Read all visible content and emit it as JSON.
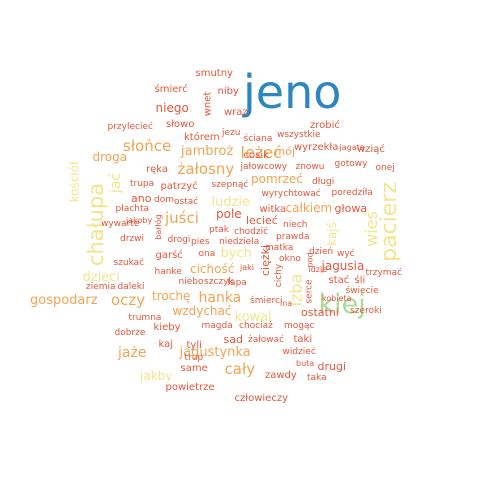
{
  "palette": {
    "blue": "#2e86c1",
    "green": "#a9dc9a",
    "yellow": "#f4e48c",
    "orange": "#f0a552",
    "red": "#e4573c"
  },
  "words": [
    {
      "text": "jeno",
      "color": "blue"
    },
    {
      "text": "kiej",
      "color": "green"
    },
    {
      "text": "pacierz",
      "color": "yellow"
    },
    {
      "text": "chałupa",
      "color": "yellow"
    },
    {
      "text": "leżeć",
      "color": "orange"
    },
    {
      "text": "słońce",
      "color": "orange"
    },
    {
      "text": "żałosny",
      "color": "orange"
    },
    {
      "text": "juści",
      "color": "orange"
    },
    {
      "text": "oczy",
      "color": "orange"
    },
    {
      "text": "hanka",
      "color": "orange"
    },
    {
      "text": "cały",
      "color": "orange"
    },
    {
      "text": "jaże",
      "color": "orange"
    },
    {
      "text": "izba",
      "color": "yellow"
    },
    {
      "text": "wieś",
      "color": "yellow"
    },
    {
      "text": "ludzie",
      "color": "yellow"
    },
    {
      "text": "bych",
      "color": "yellow"
    },
    {
      "text": "dzieci",
      "color": "yellow"
    },
    {
      "text": "kowal",
      "color": "yellow"
    },
    {
      "text": "jakby",
      "color": "yellow"
    },
    {
      "text": "gospodarz",
      "color": "orange"
    },
    {
      "text": "jagustynka",
      "color": "orange"
    },
    {
      "text": "jambroż",
      "color": "orange"
    },
    {
      "text": "cichość",
      "color": "orange"
    },
    {
      "text": "wzdychać",
      "color": "orange"
    },
    {
      "text": "trochę",
      "color": "orange"
    },
    {
      "text": "pomrzeć",
      "color": "orange"
    },
    {
      "text": "całkiem",
      "color": "orange"
    },
    {
      "text": "kajś",
      "color": "yellow"
    },
    {
      "text": "jać",
      "color": "yellow"
    },
    {
      "text": "kościół",
      "color": "yellow"
    },
    {
      "text": "droga",
      "color": "orange"
    },
    {
      "text": "mój",
      "color": "orange"
    },
    {
      "text": "niego",
      "color": "red"
    },
    {
      "text": "smutny",
      "color": "red"
    },
    {
      "text": "niby",
      "color": "red"
    },
    {
      "text": "śmierć",
      "color": "red"
    },
    {
      "text": "wnet",
      "color": "red"
    },
    {
      "text": "wraz",
      "color": "red"
    },
    {
      "text": "przylecieć",
      "color": "red"
    },
    {
      "text": "słowo",
      "color": "red"
    },
    {
      "text": "jezu",
      "color": "red"
    },
    {
      "text": "którem",
      "color": "red"
    },
    {
      "text": "ściana",
      "color": "red"
    },
    {
      "text": "wszystkie",
      "color": "red"
    },
    {
      "text": "zrobić",
      "color": "red"
    },
    {
      "text": "wyrzekła",
      "color": "red"
    },
    {
      "text": "wziąć",
      "color": "red"
    },
    {
      "text": "jagata",
      "color": "red"
    },
    {
      "text": "gotowy",
      "color": "red"
    },
    {
      "text": "onej",
      "color": "red"
    },
    {
      "text": "cosik",
      "color": "red"
    },
    {
      "text": "jałowcowy",
      "color": "red"
    },
    {
      "text": "znowu",
      "color": "red"
    },
    {
      "text": "długi",
      "color": "red"
    },
    {
      "text": "ręka",
      "color": "red"
    },
    {
      "text": "trupa",
      "color": "red"
    },
    {
      "text": "patrzyć",
      "color": "red"
    },
    {
      "text": "szepnąć",
      "color": "red"
    },
    {
      "text": "ano",
      "color": "red"
    },
    {
      "text": "dom",
      "color": "red"
    },
    {
      "text": "ostać",
      "color": "red"
    },
    {
      "text": "wyrychtować",
      "color": "red"
    },
    {
      "text": "poredziła",
      "color": "red"
    },
    {
      "text": "płachta",
      "color": "red"
    },
    {
      "text": "witka",
      "color": "red"
    },
    {
      "text": "głowa",
      "color": "red"
    },
    {
      "text": "pole",
      "color": "red"
    },
    {
      "text": "lecieć",
      "color": "red"
    },
    {
      "text": "niech",
      "color": "red"
    },
    {
      "text": "wywarte",
      "color": "red"
    },
    {
      "text": "jakoby",
      "color": "red"
    },
    {
      "text": "barłóg",
      "color": "red"
    },
    {
      "text": "ptak",
      "color": "red"
    },
    {
      "text": "chodzić",
      "color": "red"
    },
    {
      "text": "prawda",
      "color": "red"
    },
    {
      "text": "drzwi",
      "color": "red"
    },
    {
      "text": "drogi",
      "color": "red"
    },
    {
      "text": "pies",
      "color": "red"
    },
    {
      "text": "niedziela",
      "color": "red"
    },
    {
      "text": "ona",
      "color": "red"
    },
    {
      "text": "matka",
      "color": "red"
    },
    {
      "text": "okno",
      "color": "red"
    },
    {
      "text": "ciężki",
      "color": "red"
    },
    {
      "text": "wyć",
      "color": "red"
    },
    {
      "text": "jagusia",
      "color": "red"
    },
    {
      "text": "garść",
      "color": "red"
    },
    {
      "text": "szukać",
      "color": "red"
    },
    {
      "text": "hanke",
      "color": "red"
    },
    {
      "text": "niebo",
      "color": "red"
    },
    {
      "text": "szczyk",
      "color": "red"
    },
    {
      "text": "łapa",
      "color": "red"
    },
    {
      "text": "jaki",
      "color": "red"
    },
    {
      "text": "trzymać",
      "color": "red"
    },
    {
      "text": "ziemia",
      "color": "red"
    },
    {
      "text": "daleki",
      "color": "red"
    },
    {
      "text": "stać",
      "color": "red"
    },
    {
      "text": "śli",
      "color": "red"
    },
    {
      "text": "świecie",
      "color": "red"
    },
    {
      "text": "kobieta",
      "color": "red"
    },
    {
      "text": "śmierci",
      "color": "red"
    },
    {
      "text": "serce",
      "color": "red"
    },
    {
      "text": "pod",
      "color": "red"
    },
    {
      "text": "ostatni",
      "color": "red"
    },
    {
      "text": "szeroki",
      "color": "red"
    },
    {
      "text": "trumna",
      "color": "red"
    },
    {
      "text": "kieby",
      "color": "red"
    },
    {
      "text": "magda",
      "color": "red"
    },
    {
      "text": "chociaż",
      "color": "red"
    },
    {
      "text": "mogąc",
      "color": "red"
    },
    {
      "text": "dobrze",
      "color": "red"
    },
    {
      "text": "kaj",
      "color": "red"
    },
    {
      "text": "tyli",
      "color": "red"
    },
    {
      "text": "sad",
      "color": "red"
    },
    {
      "text": "żałować",
      "color": "red"
    },
    {
      "text": "taki",
      "color": "red"
    },
    {
      "text": "widzieć",
      "color": "red"
    },
    {
      "text": "trup",
      "color": "red"
    },
    {
      "text": "buta",
      "color": "red"
    },
    {
      "text": "drugi",
      "color": "red"
    },
    {
      "text": "same",
      "color": "red"
    },
    {
      "text": "zawdy",
      "color": "red"
    },
    {
      "text": "taka",
      "color": "red"
    },
    {
      "text": "powietrze",
      "color": "red"
    },
    {
      "text": "człowieczy",
      "color": "red"
    },
    {
      "text": "cichy",
      "color": "red"
    },
    {
      "text": "ina",
      "color": "red"
    },
    {
      "text": "idzie",
      "color": "red"
    },
    {
      "text": "dzień",
      "color": "red"
    }
  ]
}
